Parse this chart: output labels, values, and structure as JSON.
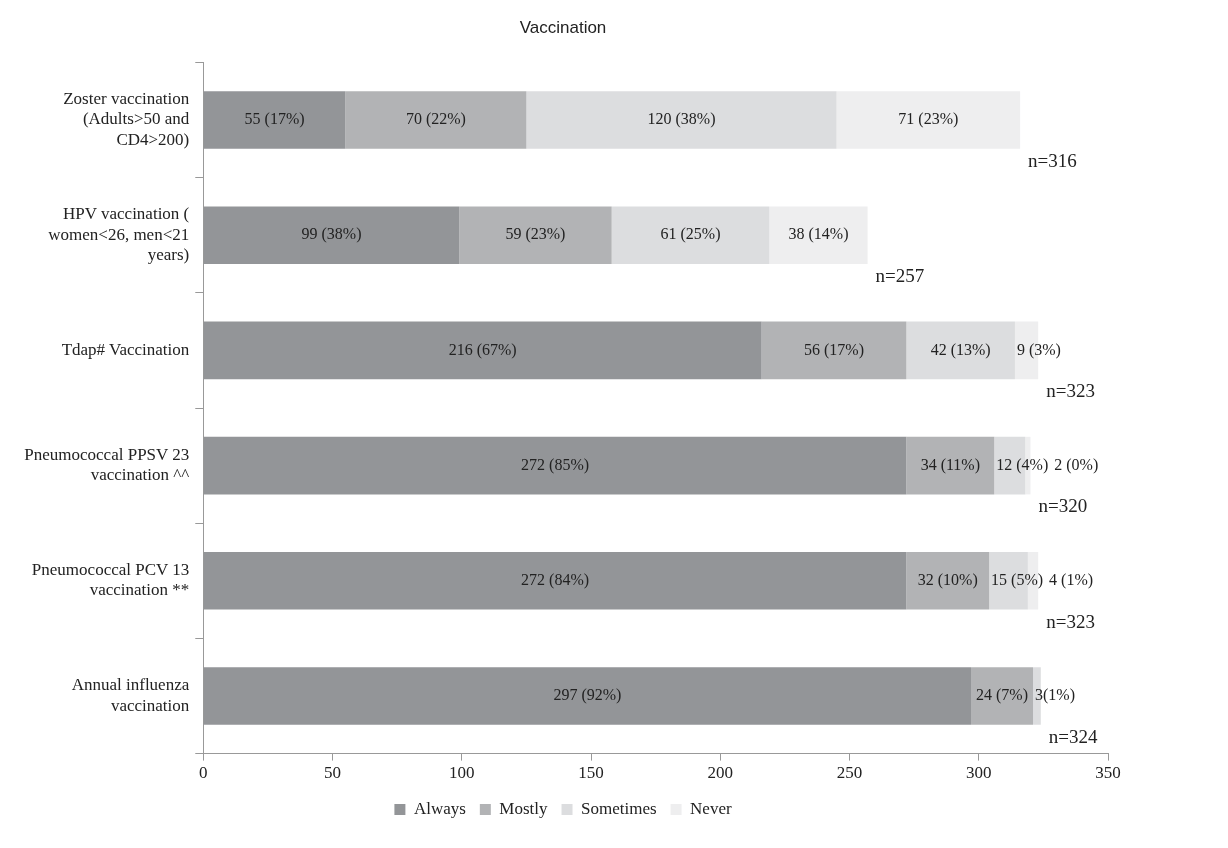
{
  "chart_data": {
    "type": "bar",
    "orientation": "horizontal",
    "stacked": true,
    "title": "Vaccination",
    "categories": [
      "Zoster vaccination (Adults>50 and CD4>200)",
      "HPV vaccination ( women<26, men<21 years)",
      "Tdap# Vaccination",
      "Pneumococcal PPSV 23 vaccination ^^",
      "Pneumococcal PCV 13 vaccination **",
      "Annual influenza vaccination"
    ],
    "series": [
      {
        "name": "Always",
        "color": "#939598",
        "values": [
          55,
          99,
          216,
          272,
          272,
          297
        ],
        "value_labels": [
          "55 (17%)",
          "99 (38%)",
          "216 (67%)",
          "272 (85%)",
          "272 (84%)",
          "297 (92%)"
        ]
      },
      {
        "name": "Mostly",
        "color": "#b2b3b5",
        "values": [
          70,
          59,
          56,
          34,
          32,
          24
        ],
        "value_labels": [
          "70 (22%)",
          "59 (23%)",
          "56 (17%)",
          "34 (11%)",
          "32 (10%)",
          "24 (7%)"
        ]
      },
      {
        "name": "Sometimes",
        "color": "#dcdddf",
        "values": [
          120,
          61,
          42,
          12,
          15,
          3
        ],
        "value_labels": [
          "120 (38%)",
          "61 (25%)",
          "42 (13%)",
          "12 (4%)",
          "15 (5%)",
          "3(1%)"
        ]
      },
      {
        "name": "Never",
        "color": "#eeeeef",
        "values": [
          71,
          38,
          9,
          2,
          4,
          null
        ],
        "value_labels": [
          "71 (23%)",
          "38 (14%)",
          "9 (3%)",
          "2 (0%)",
          "4 (1%)",
          null
        ]
      }
    ],
    "totals": [
      "n=316",
      "n=257",
      "n=323",
      "n=320",
      "n=323",
      "n=324"
    ],
    "xlim": [
      0,
      350
    ],
    "xticks": [
      0,
      50,
      100,
      150,
      200,
      250,
      300,
      350
    ],
    "grid": false,
    "legend": "bottom"
  }
}
